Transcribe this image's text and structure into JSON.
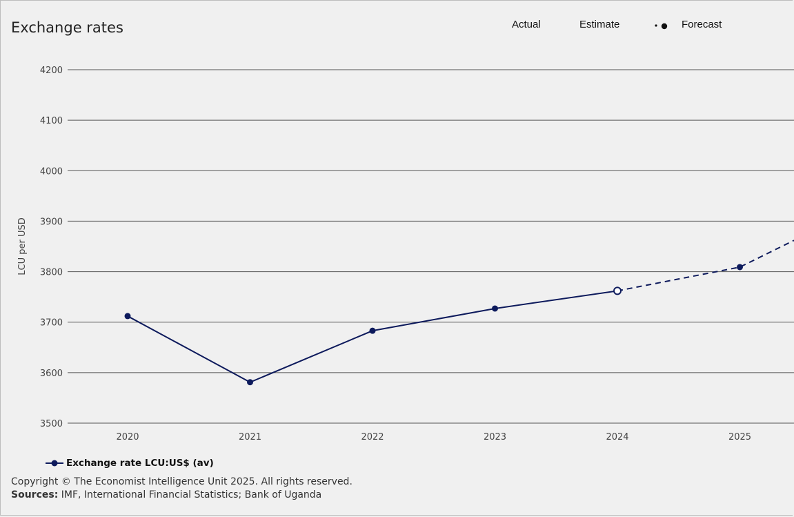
{
  "title": "Exchange rates",
  "key": {
    "actual": "Actual",
    "estimate": "Estimate",
    "forecast": "Forecast"
  },
  "colors": {
    "series": "#0d1a5c",
    "grid": "#555555",
    "background": "#f0f0f0"
  },
  "footer": {
    "copyright": "Copyright © The Economist Intelligence Unit 2025. All rights reserved.",
    "sources_label": "Sources:",
    "sources_text": " IMF, International Financial Statistics; Bank of Uganda"
  },
  "chart_data": {
    "type": "line",
    "title": "Exchange rates",
    "xlabel": "",
    "ylabel": "LCU per USD",
    "ylim": [
      3500,
      4200
    ],
    "yticks": [
      "3500",
      "3600",
      "3700",
      "3800",
      "3900",
      "4000",
      "4100",
      "4200"
    ],
    "categories": [
      "2020",
      "2021",
      "2022",
      "2023",
      "2024",
      "2025"
    ],
    "grid": "horizontal",
    "legend_placement": "bottom-left",
    "series": [
      {
        "name": "Exchange rate LCU:US$ (av)",
        "values": [
          3712,
          3581,
          3683,
          3727,
          3762,
          3809
        ],
        "status": [
          "actual",
          "actual",
          "actual",
          "actual",
          "estimate",
          "forecast"
        ],
        "forecast_trailing_value": 3862
      }
    ]
  }
}
